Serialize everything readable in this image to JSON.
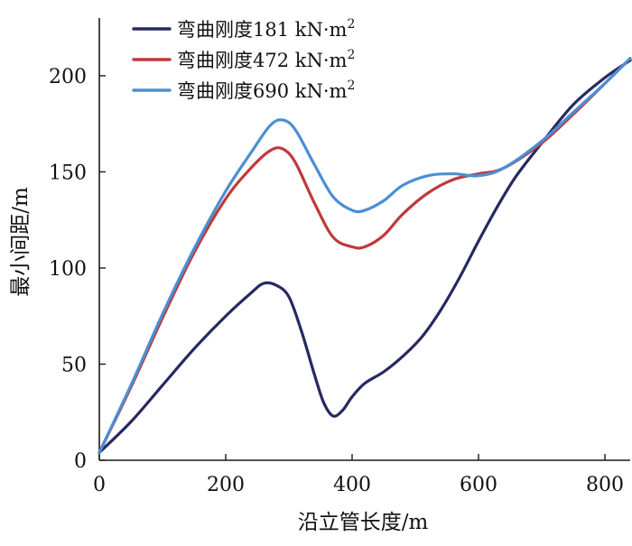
{
  "chart_data": {
    "type": "line",
    "xlabel": "沿立管长度/m",
    "ylabel": "最小间距/m",
    "xlim": [
      0,
      840
    ],
    "ylim": [
      0,
      230
    ],
    "xticks": [
      0,
      200,
      400,
      600,
      800
    ],
    "yticks": [
      0,
      50,
      100,
      150,
      200
    ],
    "grid": false,
    "legend_position": "top-left",
    "series": [
      {
        "name": "弯曲刚度181 kN·m",
        "name_sup": "2",
        "color": "#262961",
        "x": [
          0,
          50,
          100,
          150,
          200,
          240,
          260,
          280,
          300,
          320,
          340,
          355,
          370,
          385,
          400,
          420,
          450,
          480,
          510,
          540,
          570,
          600,
          630,
          660,
          700,
          750,
          800,
          840
        ],
        "y": [
          4,
          20,
          39,
          58,
          75,
          87,
          92,
          91,
          85,
          67,
          45,
          30,
          23,
          26,
          33,
          40,
          46,
          54,
          64,
          78,
          95,
          114,
          132,
          148,
          165,
          185,
          199,
          208
        ]
      },
      {
        "name": "弯曲刚度472 kN·m",
        "name_sup": "2",
        "color": "#c0393a",
        "x": [
          0,
          50,
          100,
          150,
          200,
          240,
          270,
          290,
          310,
          340,
          370,
          400,
          420,
          450,
          480,
          520,
          560,
          600,
          640,
          700,
          750,
          800,
          840
        ],
        "y": [
          4,
          38,
          74,
          108,
          136,
          152,
          161,
          162,
          155,
          134,
          116,
          111,
          111,
          117,
          128,
          139,
          146,
          149,
          152,
          165,
          180,
          196,
          209
        ]
      },
      {
        "name": "弯曲刚度690 kN·m",
        "name_sup": "2",
        "color": "#4a8fd4",
        "x": [
          0,
          50,
          100,
          150,
          200,
          240,
          270,
          290,
          310,
          340,
          370,
          400,
          420,
          450,
          480,
          520,
          560,
          600,
          640,
          700,
          750,
          800,
          840
        ],
        "y": [
          4,
          39,
          76,
          110,
          140,
          160,
          174,
          177,
          172,
          154,
          137,
          130,
          130,
          135,
          143,
          148,
          149,
          148,
          152,
          166,
          181,
          196,
          209
        ]
      }
    ]
  }
}
